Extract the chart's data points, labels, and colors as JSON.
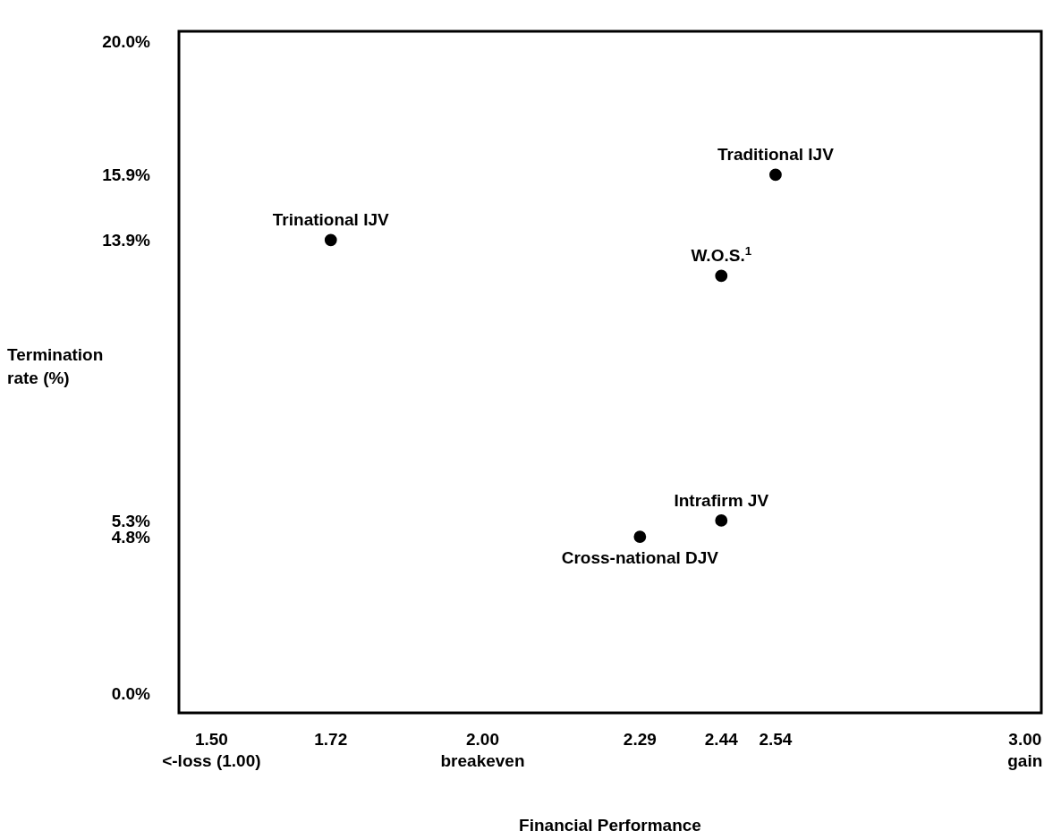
{
  "chart_data": {
    "type": "scatter",
    "xlabel": "Financial Performance",
    "ylabel": "Termination rate (%)",
    "xlim": [
      1.44,
      3.03
    ],
    "ylim": [
      -0.6,
      20.3
    ],
    "xticks": [
      {
        "value": 1.5,
        "label": "1.50\n<-loss (1.00)"
      },
      {
        "value": 1.72,
        "label": "1.72"
      },
      {
        "value": 2.0,
        "label": "2.00\nbreakeven"
      },
      {
        "value": 2.29,
        "label": "2.29"
      },
      {
        "value": 2.44,
        "label": "2.44"
      },
      {
        "value": 2.54,
        "label": "2.54"
      },
      {
        "value": 3.0,
        "label": "3.00\ngain"
      }
    ],
    "yticks": [
      {
        "value": 0,
        "label": "0.0%"
      },
      {
        "value": 4.8,
        "label": "4.8%"
      },
      {
        "value": 5.3,
        "label": "5.3%"
      },
      {
        "value": 13.9,
        "label": "13.9%"
      },
      {
        "value": 15.9,
        "label": "15.9%"
      },
      {
        "value": 20,
        "label": "20.0%"
      }
    ],
    "grid": false,
    "marker": "circle",
    "series": [
      {
        "name": "Trinational IJV",
        "color": "#000000",
        "x": [
          1.72
        ],
        "values": [
          13.9
        ]
      },
      {
        "name": "Traditional IJV",
        "color": "#000000",
        "x": [
          2.54
        ],
        "values": [
          15.9
        ]
      },
      {
        "name": "W.O.S.$^{1}$",
        "color": "#000000",
        "x": [
          2.44
        ],
        "values": [
          12.8
        ]
      },
      {
        "name": "Intrafirm JV",
        "color": "#000000",
        "x": [
          2.44
        ],
        "values": [
          5.3
        ]
      },
      {
        "name": "Cross-national DJV",
        "color": "#000000",
        "x": [
          2.29
        ],
        "values": [
          4.8
        ]
      }
    ]
  }
}
